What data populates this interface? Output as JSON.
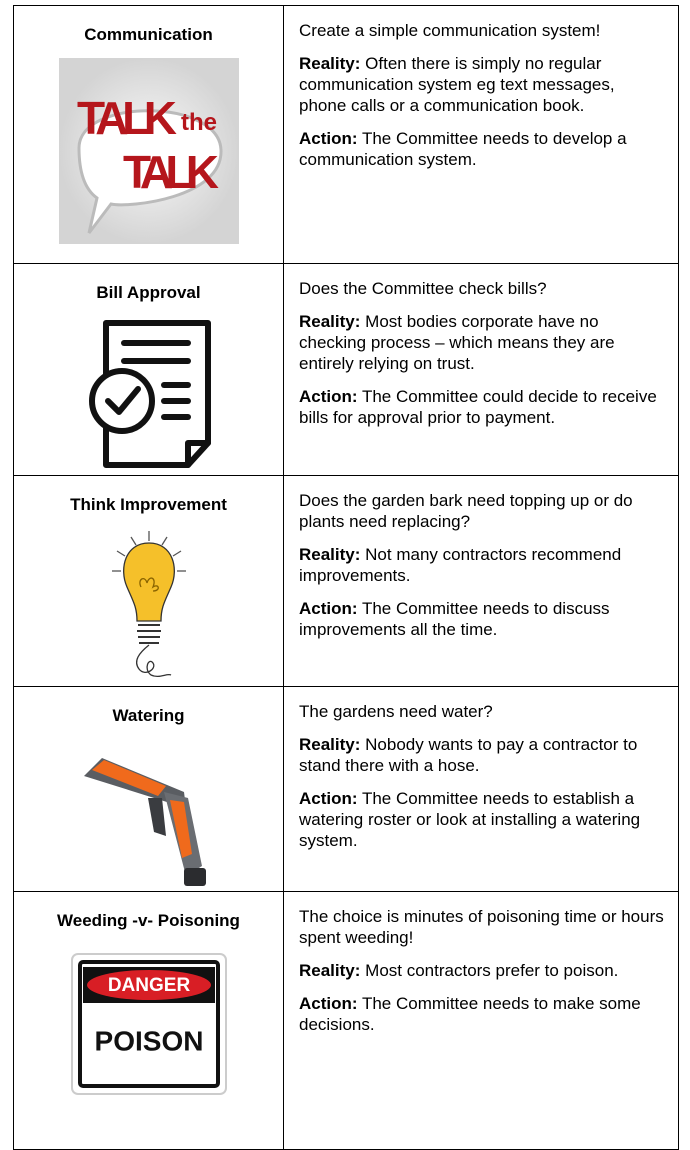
{
  "rows": [
    {
      "title": "Communication",
      "image_text": [
        "TALK",
        "the",
        "TALK"
      ],
      "intro": "Create a simple communication system!",
      "reality_label": "Reality:",
      "reality": "Often there is simply no regular communication system eg text messages, phone calls or a communication book.",
      "action_label": "Action:",
      "action": "The Committee needs to develop a communication system."
    },
    {
      "title": "Bill Approval",
      "intro": "Does the Committee check bills?",
      "reality_label": "Reality:",
      "reality": "Most bodies corporate have no checking process – which means they are entirely relying on trust.",
      "action_label": "Action:",
      "action": "The Committee could decide to receive bills for approval prior to payment."
    },
    {
      "title": "Think Improvement",
      "intro": "Does the garden bark need topping up or do plants need replacing?",
      "reality_label": "Reality:",
      "reality": "Not many contractors recommend improvements.",
      "action_label": "Action:",
      "action": "The Committee needs to discuss improvements all the time."
    },
    {
      "title": "Watering",
      "intro": "The gardens need water?",
      "reality_label": "Reality:",
      "reality": "Nobody wants to pay a contractor to stand there with a hose.",
      "action_label": "Action:",
      "action": "The Committee needs to establish a watering roster or look at installing a watering system."
    },
    {
      "title": "Weeding -v- Poisoning",
      "image_text": [
        "DANGER",
        "POISON"
      ],
      "intro": "The choice is minutes of poisoning time or hours spent weeding!",
      "reality_label": "Reality:",
      "reality": "Most contractors prefer to poison.",
      "action_label": "Action:",
      "action": "The Committee needs to make some decisions."
    }
  ]
}
